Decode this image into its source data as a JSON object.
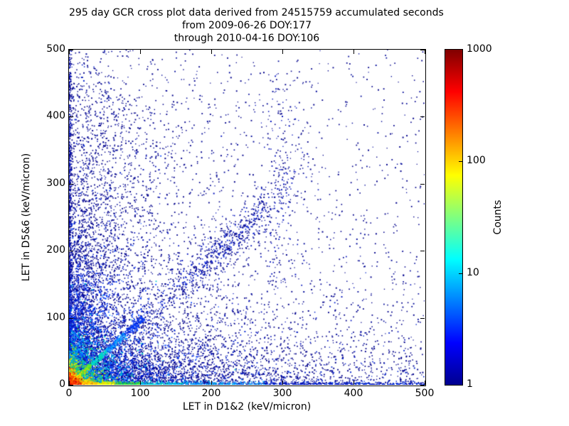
{
  "chart_data": {
    "type": "scatter",
    "title": "295 day GCR cross plot data derived from 24515759 accumulated seconds",
    "title_lines": [
      "295 day GCR cross plot data derived from 24515759 accumulated seconds",
      "from 2009-06-26 DOY:177",
      "through 2010-04-16 DOY:106"
    ],
    "xlabel": "LET in D1&2 (keV/micron)",
    "ylabel": "LET in D5&6 (keV/micron)",
    "xlim": [
      0,
      500
    ],
    "ylim": [
      0,
      500
    ],
    "xticks": [
      0,
      100,
      200,
      300,
      400,
      500
    ],
    "yticks": [
      0,
      100,
      200,
      300,
      400,
      500
    ],
    "grid": false,
    "background_color": "#ffffff",
    "single_count_color": "#00008b",
    "colorbar": {
      "label": "Counts",
      "scale": "log",
      "min": 1,
      "max": 1000,
      "ticks": [
        1000,
        100,
        10,
        1
      ],
      "colormap": "jet",
      "gradient_stops": [
        {
          "pos": 0.0,
          "color": "#00008f"
        },
        {
          "pos": 0.125,
          "color": "#0000ff"
        },
        {
          "pos": 0.375,
          "color": "#00ffff"
        },
        {
          "pos": 0.625,
          "color": "#ffff00"
        },
        {
          "pos": 0.875,
          "color": "#ff0000"
        },
        {
          "pos": 1.0,
          "color": "#800000"
        }
      ]
    },
    "description": "2-D histogram of LET in detectors D1&2 vs D5&6. Very hot core (~1000 counts, red) at the origin, red-to-cyan band hugging the x axis out to ~500, blue band hugging the y axis, a bright yellow-green streak along y=x near the origin, a fan of blue streaks radiating steeply from the origin, a sparse dark-blue (1 count) field over the whole plane, and a diagonal heavy-ion cluster from about (115,100) to (345,335).",
    "seed": 42,
    "features": [
      {
        "kind": "power_scatter",
        "n": 2400,
        "px": 2.0,
        "py": 2.0,
        "colors": [
          "#00008b",
          "#000a99"
        ]
      },
      {
        "kind": "power_scatter",
        "n": 420,
        "px": 1.0,
        "py": 1.0,
        "colors": [
          "#00008b"
        ]
      },
      {
        "kind": "corner_blob",
        "sx": 330,
        "sy": 60,
        "n": 900,
        "colors": [
          "#00008b"
        ]
      },
      {
        "kind": "corner_blob",
        "sx": 60,
        "sy": 330,
        "n": 500,
        "colors": [
          "#00008b"
        ]
      },
      {
        "kind": "corner_blob",
        "sx": 210,
        "sy": 26,
        "n": 1500,
        "colors": [
          "#0022cc",
          "#00008b",
          "#00008b"
        ]
      },
      {
        "kind": "corner_blob",
        "sx": 26,
        "sy": 210,
        "n": 900,
        "colors": [
          "#0022cc",
          "#00008b",
          "#00008b"
        ]
      },
      {
        "kind": "corner_blob",
        "sx": 95,
        "sy": 95,
        "n": 2600,
        "colors": [
          "#0011bb",
          "#00008b",
          "#00008b"
        ]
      },
      {
        "kind": "line_cluster",
        "x1": 115,
        "y1": 100,
        "x2": 345,
        "y2": 335,
        "sigma": 15,
        "tsigma": 0.23,
        "n": 520,
        "colors": [
          "#00008b",
          "#000a99",
          "#0011bb"
        ]
      },
      {
        "kind": "column",
        "x": 298,
        "sx": 13,
        "y1": 140,
        "y2": 465,
        "ypow": 0.8,
        "n": 160,
        "colors": [
          "#00008b",
          "#0011bb"
        ]
      },
      {
        "kind": "segment",
        "x1": 95,
        "y1": 90,
        "x2": 268,
        "y2": 252,
        "sigma": 7,
        "n": 230,
        "colors": [
          "#0022dd",
          "#00008b"
        ]
      },
      {
        "kind": "ray",
        "x2": 32,
        "y2": 455,
        "width": 3.5,
        "tpow": 1.7,
        "grow": true,
        "n": 260,
        "stops": [
          {
            "t": 0.08,
            "colors": [
              "#00ddcc",
              "#55dd33"
            ]
          },
          {
            "t": 0.18,
            "colors": [
              "#00aaff",
              "#0077ff"
            ]
          },
          {
            "t": 0.4,
            "colors": [
              "#0033ee",
              "#0011cc"
            ]
          },
          {
            "t": 1.01,
            "colors": [
              "#000a99",
              "#00008b"
            ]
          }
        ]
      },
      {
        "kind": "ray",
        "x2": 52,
        "y2": 440,
        "width": 4,
        "tpow": 1.7,
        "grow": true,
        "n": 280,
        "stops": [
          {
            "t": 0.08,
            "colors": [
              "#00ddcc",
              "#55dd33"
            ]
          },
          {
            "t": 0.18,
            "colors": [
              "#00aaff",
              "#0077ff"
            ]
          },
          {
            "t": 0.4,
            "colors": [
              "#0033ee",
              "#0011cc"
            ]
          },
          {
            "t": 1.01,
            "colors": [
              "#000a99",
              "#00008b"
            ]
          }
        ]
      },
      {
        "kind": "ray",
        "x2": 78,
        "y2": 430,
        "width": 5,
        "tpow": 1.7,
        "grow": true,
        "n": 300,
        "stops": [
          {
            "t": 0.08,
            "colors": [
              "#00ddcc",
              "#55dd33"
            ]
          },
          {
            "t": 0.18,
            "colors": [
              "#00aaff",
              "#0077ff"
            ]
          },
          {
            "t": 0.4,
            "colors": [
              "#0033ee",
              "#0011cc"
            ]
          },
          {
            "t": 1.01,
            "colors": [
              "#000a99",
              "#00008b"
            ]
          }
        ]
      },
      {
        "kind": "ray",
        "x2": 112,
        "y2": 415,
        "width": 6,
        "tpow": 1.7,
        "grow": true,
        "n": 270,
        "stops": [
          {
            "t": 0.08,
            "colors": [
              "#00ddcc",
              "#55dd33"
            ]
          },
          {
            "t": 0.18,
            "colors": [
              "#00aaff",
              "#0077ff"
            ]
          },
          {
            "t": 0.4,
            "colors": [
              "#0033ee",
              "#0011cc"
            ]
          },
          {
            "t": 1.01,
            "colors": [
              "#000a99",
              "#00008b"
            ]
          }
        ]
      },
      {
        "kind": "ray",
        "x2": 150,
        "y2": 390,
        "width": 7,
        "tpow": 1.7,
        "grow": true,
        "n": 210,
        "stops": [
          {
            "t": 0.08,
            "colors": [
              "#00ddcc",
              "#55dd33"
            ]
          },
          {
            "t": 0.18,
            "colors": [
              "#00aaff",
              "#0077ff"
            ]
          },
          {
            "t": 0.4,
            "colors": [
              "#0033ee",
              "#0011cc"
            ]
          },
          {
            "t": 1.01,
            "colors": [
              "#000a99",
              "#00008b"
            ]
          }
        ]
      },
      {
        "kind": "corner_blob",
        "sx": 45,
        "sy": 45,
        "n": 2200,
        "colors": [
          "#0044ff",
          "#0022dd",
          "#0011bb"
        ]
      },
      {
        "kind": "corner_blob",
        "sx": 24,
        "sy": 24,
        "n": 1200,
        "colors": [
          "#00ccd0",
          "#00a0ff"
        ]
      },
      {
        "kind": "ray",
        "x2": 0,
        "y2": 500,
        "width": 1.8,
        "tpow": 2.0,
        "grow": false,
        "n": 1700,
        "stops": [
          {
            "t": 0.03,
            "colors": [
              "#00cc66",
              "#00ddcc"
            ]
          },
          {
            "t": 0.1,
            "colors": [
              "#00aaff",
              "#0066ff"
            ]
          },
          {
            "t": 0.3,
            "colors": [
              "#0033ee",
              "#0011bb"
            ]
          },
          {
            "t": 1.01,
            "colors": [
              "#0011bb",
              "#00008b"
            ]
          }
        ]
      },
      {
        "kind": "corner_blob",
        "sx": 14,
        "sy": 14,
        "n": 800,
        "colors": [
          "#bbee00",
          "#55cc33",
          "#00cc88"
        ]
      },
      {
        "kind": "ray",
        "x2": 105,
        "y2": 100,
        "width": 2.0,
        "tpow": 1.4,
        "grow": true,
        "n": 800,
        "stops": [
          {
            "t": 0.12,
            "colors": [
              "#ffee00",
              "#ffbb00"
            ]
          },
          {
            "t": 0.3,
            "colors": [
              "#aaee00",
              "#44dd44"
            ]
          },
          {
            "t": 0.5,
            "colors": [
              "#00ddaa",
              "#00ccee"
            ]
          },
          {
            "t": 0.75,
            "colors": [
              "#00aaff",
              "#0066ff"
            ]
          },
          {
            "t": 1.01,
            "colors": [
              "#0044ff",
              "#0022dd"
            ]
          }
        ]
      },
      {
        "kind": "ray",
        "x2": 500,
        "y2": 0,
        "width": 2.2,
        "tpow": 2.4,
        "grow": false,
        "n": 2600,
        "stops": [
          {
            "t": 0.015,
            "colors": [
              "#990000",
              "#dd0000"
            ]
          },
          {
            "t": 0.04,
            "colors": [
              "#ff4400",
              "#ff7700"
            ]
          },
          {
            "t": 0.08,
            "colors": [
              "#ff9900",
              "#ffcc00"
            ]
          },
          {
            "t": 0.13,
            "colors": [
              "#ffee00",
              "#ccee00"
            ]
          },
          {
            "t": 0.2,
            "colors": [
              "#66dd22",
              "#00cc66"
            ]
          },
          {
            "t": 0.32,
            "colors": [
              "#00ccbb",
              "#00aaff"
            ]
          },
          {
            "t": 0.55,
            "colors": [
              "#0077ff",
              "#00aaee"
            ]
          },
          {
            "t": 1.01,
            "colors": [
              "#0033dd",
              "#0011bb"
            ]
          }
        ]
      },
      {
        "kind": "corner_blob",
        "sx": 8,
        "sy": 8,
        "n": 550,
        "colors": [
          "#ff9900",
          "#ffcc00",
          "#ffee00"
        ]
      },
      {
        "kind": "corner_blob",
        "sx": 4,
        "sy": 4,
        "n": 500,
        "colors": [
          "#bb0000",
          "#ff3300",
          "#ff6600"
        ]
      }
    ]
  }
}
